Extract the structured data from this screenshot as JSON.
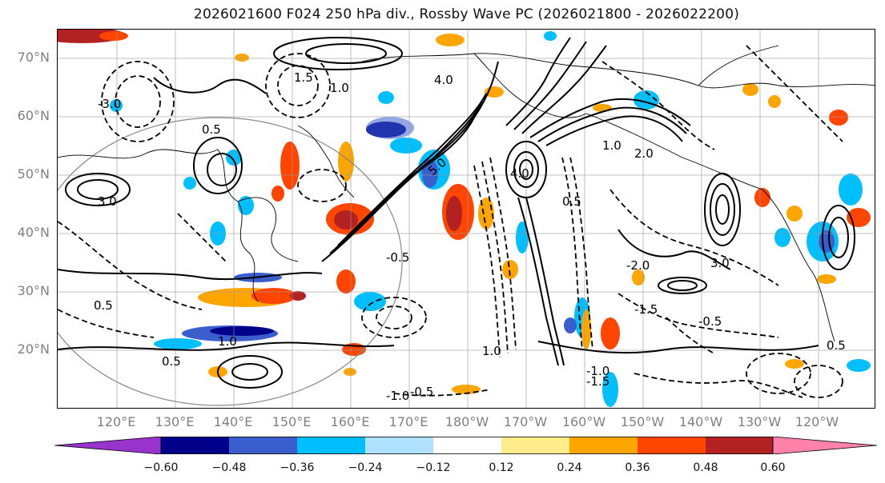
{
  "title": "2026021600 F024 250 hPa div., Rossby Wave PC (2026021800 - 2026022200)",
  "map": {
    "projection": "equirectangular",
    "region": "North Pacific",
    "latitude_labels": [
      "70°N",
      "60°N",
      "50°N",
      "40°N",
      "30°N",
      "20°N"
    ],
    "longitude_labels": [
      "120°E",
      "130°E",
      "140°E",
      "150°E",
      "160°E",
      "170°E",
      "180°W",
      "170°W",
      "160°W",
      "150°W",
      "140°W",
      "130°W",
      "120°W"
    ],
    "grid": true,
    "contour_labels": [
      "5.0",
      "4.0",
      "3.0",
      "2.0",
      "1.5",
      "1.0",
      "0.5",
      "-0.5",
      "-1.0",
      "-1.5",
      "-2.0",
      "-3.0"
    ],
    "shading_field": "250 hPa divergence",
    "contour_field": "Rossby Wave PC"
  },
  "colorbar": {
    "ticks": [
      "−0.60",
      "−0.48",
      "−0.36",
      "−0.24",
      "−0.12",
      "0.12",
      "0.24",
      "0.36",
      "0.48",
      "0.60"
    ],
    "colors": [
      "#9a32cd",
      "#00008b",
      "#3a5fcd",
      "#00bfff",
      "#b0e2ff",
      "#ffffff",
      "#ffec8b",
      "#ffa500",
      "#ff4500",
      "#b22222",
      "#ff82ab"
    ],
    "extend": "both"
  }
}
